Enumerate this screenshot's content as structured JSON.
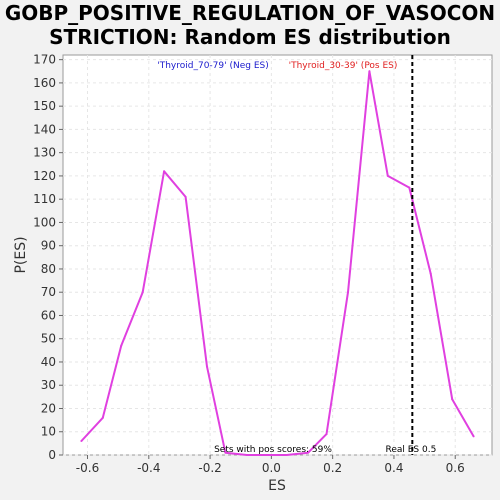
{
  "title_line1": "GOBP_POSITIVE_REGULATION_OF_VASOCON",
  "title_line2": "STRICTION: Random ES distribution",
  "chart_data": {
    "type": "line",
    "xlabel": "ES",
    "ylabel": "P(ES)",
    "xlim": [
      -0.68,
      0.72
    ],
    "ylim": [
      0,
      172
    ],
    "x_ticks": [
      -0.6,
      -0.4,
      -0.2,
      0.0,
      0.2,
      0.4,
      0.6
    ],
    "x_tick_labels": [
      "-0.6",
      "-0.4",
      "-0.2",
      "0.0",
      "0.2",
      "0.4",
      "0.6"
    ],
    "y_ticks": [
      0,
      10,
      20,
      30,
      40,
      50,
      60,
      70,
      80,
      90,
      100,
      110,
      120,
      130,
      140,
      150,
      160,
      170
    ],
    "grid": true,
    "series_color": "#e040e0",
    "series": [
      {
        "x": [
          -0.62,
          -0.55,
          -0.49,
          -0.42,
          -0.35,
          -0.28,
          -0.21,
          -0.15,
          -0.08,
          -0.02,
          0.05,
          0.12,
          0.18,
          0.25,
          0.32,
          0.38,
          0.45,
          0.52,
          0.59,
          0.66
        ],
        "y": [
          6,
          16,
          47,
          70,
          122,
          111,
          38,
          1,
          0,
          0,
          0,
          1,
          9,
          70,
          165,
          120,
          115,
          78,
          24,
          8
        ]
      }
    ],
    "vline": {
      "x": 0.46,
      "label": "Real ES 0.5"
    },
    "legend": [
      {
        "label": "'Thyroid_70-79' (Neg ES)",
        "color": "#1a1acc"
      },
      {
        "label": "'Thyroid_30-39' (Pos ES)",
        "color": "#e02020"
      }
    ],
    "annotation": "Sets with pos scores: 59%"
  }
}
